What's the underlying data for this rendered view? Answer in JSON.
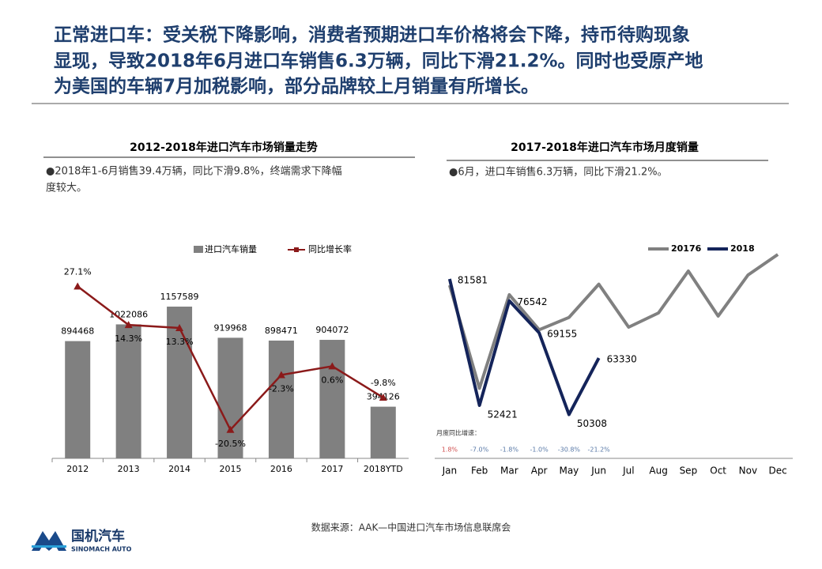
{
  "heading": [
    "正常进口车：受关税下降影响，消费者预期进口车价格将会下降，持币待购现象",
    "显现，导致2018年6月进口车销售6.3万辆，同比下滑21.2%。同时也受原产地",
    "为美国的车辆7月加税影响，部分品牌较上月销量有所增长。"
  ],
  "chart_data": [
    {
      "type": "combo",
      "title": "2012-2018年进口汽车市场销量走势",
      "bullet": [
        "●2018年1-6月销售39.4万辆，同比下滑9.8%，终端需求下降幅",
        "度较大。"
      ],
      "categories": [
        "2012",
        "2013",
        "2014",
        "2015",
        "2016",
        "2017",
        "2018YTD"
      ],
      "ylim": [
        0,
        1700000
      ],
      "y2lim": [
        -30,
        44
      ],
      "legend": "top",
      "series": [
        {
          "name": "进口汽车销量",
          "color": "#808080",
          "kind": "bar",
          "values": [
            894468,
            1022086,
            1157589,
            919968,
            898471,
            904072,
            394126
          ]
        },
        {
          "name": "同比增长率",
          "color": "#8b1a1a",
          "kind": "line",
          "axis": "y2",
          "values": [
            27.1,
            14.3,
            13.3,
            -20.5,
            -2.3,
            0.6,
            -9.8
          ],
          "value_labels": [
            "27.1%",
            "14.3%",
            "13.3%",
            "-20.5%",
            "-2.3%",
            "0.6%",
            "-9.8%"
          ]
        }
      ]
    },
    {
      "type": "line",
      "title": "2017-2018年进口汽车市场月度销量",
      "bullet": [
        "●6月，进口车销售6.3万辆，同比下滑21.2%。"
      ],
      "categories": [
        "Jan",
        "Feb",
        "Mar",
        "Apr",
        "May",
        "Jun",
        "Jul",
        "Aug",
        "Sep",
        "Oct",
        "Nov",
        "Dec"
      ],
      "ylim": [
        40200,
        91240
      ],
      "legend": "top-right",
      "series": [
        {
          "name": "20176",
          "color": "#808080",
          "labels": false,
          "values": [
            80139,
            56367,
            77945,
            69854,
            72700,
            80368,
            70460,
            73740,
            83400,
            73020,
            82490,
            87230
          ]
        },
        {
          "name": "2018",
          "color": "#14245a",
          "labels": true,
          "values": [
            81581,
            52421,
            76542,
            69155,
            50308,
            63330,
            null,
            null,
            null,
            null,
            null,
            null
          ]
        }
      ],
      "growth_title": "月度同比增速：",
      "growth_labels": [
        "1.8%",
        "-7.0%",
        "-1.8%",
        "-1.0%",
        "-30.8%",
        "-21.2%"
      ]
    }
  ],
  "source": "数据来源：AAK—中国进口汽车市场信息联席会",
  "logo": {
    "name": "国机汽车",
    "sub": "SINOMACH AUTO"
  }
}
